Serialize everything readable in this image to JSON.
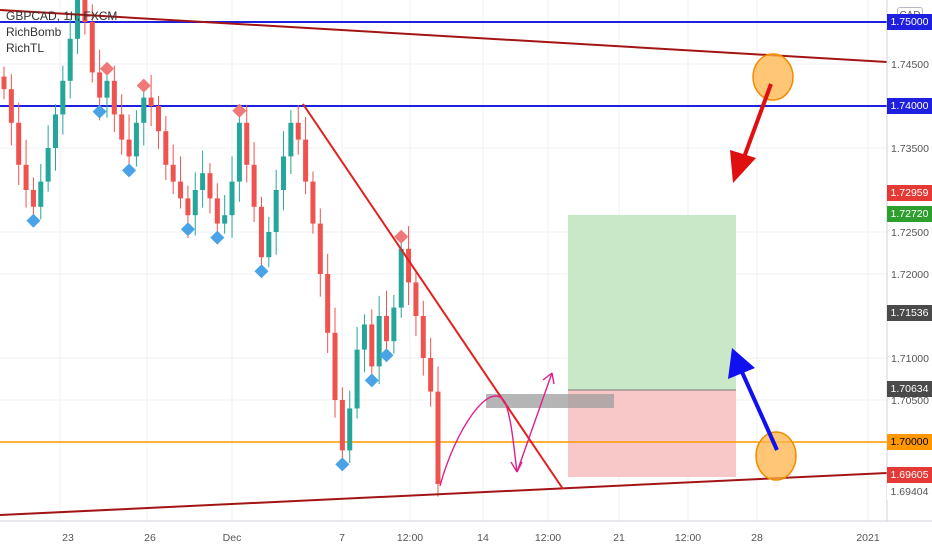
{
  "legend": {
    "symbol": "GBPCAD, 1h, FXCM",
    "indicators": [
      "RichBomb",
      "RichTL"
    ]
  },
  "currency_button": "CAD",
  "colors": {
    "bull": "#26a69a",
    "bear": "#ef5350",
    "blue_line": "#1f1fe0",
    "orange_line": "#ff9800",
    "trend_dark": "#a31515",
    "trend_red": "#e32020",
    "tp_zone": "#c8e8c8",
    "sl_zone": "#f8c8c8",
    "arrow_red": "#e01010",
    "arrow_blue": "#1010f0",
    "magenta": "#e0208a",
    "circle_fill": "#ffb347",
    "diamond_red": "#f07878",
    "diamond_blue": "#4aa3e6"
  },
  "chart_data": {
    "type": "candlestick",
    "symbol": "GBPCAD",
    "timeframe": "1h",
    "ylim": [
      1.69,
      1.759
    ],
    "y_ticks": [
      1.745,
      1.735,
      1.725,
      1.72,
      1.71,
      1.705
    ],
    "x_ticks": [
      "23",
      "26",
      "Dec",
      "7",
      "12:00",
      "14",
      "12:00",
      "21",
      "12:00",
      "28",
      "2021"
    ],
    "close_series": [
      1.742,
      1.738,
      1.733,
      1.73,
      1.728,
      1.731,
      1.735,
      1.739,
      1.743,
      1.748,
      1.755,
      1.75,
      1.744,
      1.741,
      1.743,
      1.739,
      1.736,
      1.734,
      1.738,
      1.741,
      1.74,
      1.737,
      1.733,
      1.731,
      1.729,
      1.727,
      1.73,
      1.732,
      1.729,
      1.726,
      1.727,
      1.731,
      1.738,
      1.733,
      1.728,
      1.722,
      1.725,
      1.73,
      1.734,
      1.738,
      1.736,
      1.731,
      1.726,
      1.72,
      1.713,
      1.705,
      1.699,
      1.704,
      1.711,
      1.714,
      1.709,
      1.715,
      1.712,
      1.716,
      1.723,
      1.719,
      1.715,
      1.71,
      1.706,
      1.695
    ],
    "price_lines": [
      {
        "label": "1.75000",
        "price": 1.75,
        "kind": "blue"
      },
      {
        "label": "1.74000",
        "price": 1.74,
        "kind": "blue"
      },
      {
        "label": "1.70000",
        "price": 1.7,
        "kind": "orange"
      }
    ],
    "price_labels": [
      {
        "label": "1.72959",
        "price": 1.72959,
        "kind": "red"
      },
      {
        "label": "1.72720",
        "price": 1.7272,
        "kind": "green"
      },
      {
        "label": "1.71536",
        "price": 1.71536,
        "kind": "dark"
      },
      {
        "label": "1.70634",
        "price": 1.70634,
        "kind": "dark"
      },
      {
        "label": "1.69605",
        "price": 1.69605,
        "kind": "red"
      },
      {
        "label": "1.69404",
        "price": 1.69404,
        "kind": "light"
      }
    ]
  }
}
